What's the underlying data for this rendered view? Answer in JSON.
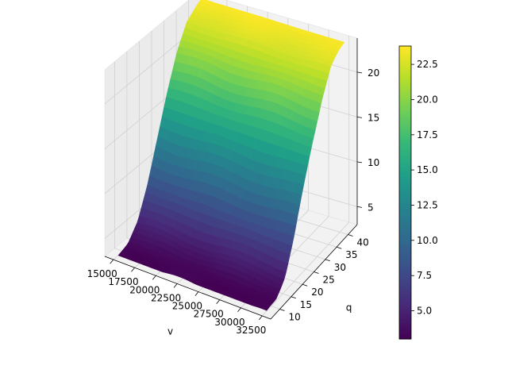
{
  "chart_data": {
    "type": "surface3d",
    "colormap": "viridis",
    "xlabel": "v",
    "ylabel": "q",
    "zlabel": "",
    "x_ticks": [
      15000,
      17500,
      20000,
      22500,
      25000,
      27500,
      30000,
      32500
    ],
    "x_tick_labels": [
      "15000",
      "17500",
      "20000",
      "22500",
      "25000",
      "27500",
      "30000",
      "32500"
    ],
    "y_ticks": [
      10,
      15,
      20,
      25,
      30,
      35,
      40
    ],
    "y_tick_labels": [
      "10",
      "15",
      "20",
      "25",
      "30",
      "35",
      "40"
    ],
    "z_ticks": [
      5,
      10,
      15,
      20
    ],
    "z_tick_labels": [
      "5",
      "10",
      "15",
      "20"
    ],
    "xlim": [
      14000,
      33500
    ],
    "ylim": [
      6,
      44
    ],
    "zlim": [
      3.0,
      23.8
    ],
    "grid": true,
    "surface": {
      "x_range": [
        15000,
        32500
      ],
      "y_range": [
        8,
        42
      ],
      "z_min": 3.0,
      "z_max": 23.8,
      "description_of_shape": "z increases with q following a sigmoid; nearly flat in v",
      "profile_q": [
        8,
        12,
        16,
        20,
        24,
        28,
        32,
        36,
        40,
        42
      ],
      "profile_z": [
        3.0,
        3.4,
        5.0,
        8.2,
        12.4,
        16.6,
        20.2,
        22.6,
        23.5,
        23.8
      ]
    },
    "colorbar": {
      "min": 3.0,
      "max": 23.8,
      "ticks": [
        5.0,
        7.5,
        10.0,
        12.5,
        15.0,
        17.5,
        20.0,
        22.5
      ],
      "tick_labels": [
        "5.0",
        "7.5",
        "10.0",
        "12.5",
        "15.0",
        "17.5",
        "20.0",
        "22.5"
      ]
    }
  }
}
